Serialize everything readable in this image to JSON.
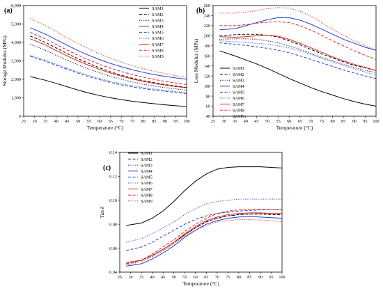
{
  "chart_data": [
    {
      "type": "line",
      "panel": "(a)",
      "xlabel": "Temperature (°C)",
      "ylabel": "Storage Modulus (MPa)",
      "xlim": [
        25,
        100
      ],
      "ylim": [
        0,
        6000
      ],
      "xticks": [
        25,
        30,
        35,
        40,
        45,
        50,
        55,
        60,
        65,
        70,
        75,
        80,
        85,
        90,
        95,
        100
      ],
      "xtick_labels": [
        "25",
        "30",
        "35",
        "40",
        "45",
        "50",
        "55",
        "60",
        "65",
        "70",
        "75",
        "80",
        "85",
        "90",
        "95",
        "100"
      ],
      "yticks": [
        0,
        1000,
        2000,
        3000,
        4000,
        5000,
        6000
      ],
      "ytick_labels": [
        "0",
        "1,000",
        "2,000",
        "3,000",
        "4,000",
        "5,000",
        "6,000"
      ],
      "legend_position": "top-right",
      "x": [
        28,
        35,
        40,
        45,
        50,
        55,
        60,
        65,
        70,
        75,
        80,
        85,
        90,
        95,
        100
      ],
      "series": [
        {
          "name": "SAM1",
          "values": [
            2150,
            1950,
            1780,
            1600,
            1420,
            1260,
            1120,
            1000,
            900,
            810,
            740,
            680,
            620,
            570,
            520
          ]
        },
        {
          "name": "SAM2",
          "values": [
            4350,
            4000,
            3700,
            3400,
            3120,
            2860,
            2620,
            2400,
            2220,
            2060,
            1930,
            1820,
            1720,
            1640,
            1560
          ]
        },
        {
          "name": "SAM3",
          "values": [
            3900,
            3580,
            3300,
            3040,
            2790,
            2560,
            2350,
            2160,
            2000,
            1860,
            1740,
            1640,
            1550,
            1480,
            1410
          ]
        },
        {
          "name": "SAM4",
          "values": [
            4800,
            4450,
            4150,
            3850,
            3560,
            3300,
            3070,
            2860,
            2680,
            2520,
            2380,
            2260,
            2160,
            2080,
            2000
          ]
        },
        {
          "name": "SAM5",
          "values": [
            3250,
            2980,
            2760,
            2550,
            2340,
            2150,
            1980,
            1830,
            1700,
            1590,
            1500,
            1420,
            1350,
            1290,
            1230
          ]
        },
        {
          "name": "SAM6",
          "values": [
            3300,
            3040,
            2820,
            2600,
            2400,
            2210,
            2040,
            1890,
            1760,
            1650,
            1550,
            1470,
            1400,
            1340,
            1280
          ]
        },
        {
          "name": "SAM7",
          "values": [
            4200,
            3860,
            3560,
            3270,
            3000,
            2760,
            2540,
            2340,
            2170,
            2020,
            1890,
            1780,
            1690,
            1610,
            1540
          ]
        },
        {
          "name": "SAM8",
          "values": [
            4550,
            4200,
            3890,
            3590,
            3310,
            3050,
            2810,
            2600,
            2420,
            2260,
            2120,
            2000,
            1890,
            1800,
            1720
          ]
        },
        {
          "name": "SAM9",
          "values": [
            5300,
            4920,
            4580,
            4250,
            3940,
            3650,
            3380,
            3140,
            2930,
            2740,
            2580,
            2440,
            2310,
            2200,
            2100
          ]
        }
      ]
    },
    {
      "type": "line",
      "panel": "(b)",
      "xlabel": "Temperature (°C)",
      "ylabel": "Loss Modulus (MPa)",
      "xlim": [
        25,
        100
      ],
      "ylim": [
        40,
        260
      ],
      "xticks": [
        25,
        30,
        35,
        40,
        45,
        50,
        55,
        60,
        65,
        70,
        75,
        80,
        85,
        90,
        95,
        100
      ],
      "xtick_labels": [
        "25",
        "30",
        "35",
        "40",
        "45",
        "50",
        "55",
        "60",
        "65",
        "70",
        "75",
        "80",
        "85",
        "90",
        "95",
        "100"
      ],
      "yticks": [
        40,
        60,
        80,
        100,
        120,
        140,
        160,
        180,
        200,
        220,
        240,
        260
      ],
      "ytick_labels": [
        "40",
        "60",
        "80",
        "100",
        "120",
        "140",
        "160",
        "180",
        "200",
        "220",
        "240",
        "260"
      ],
      "legend_position": "bottom-left",
      "x": [
        28,
        35,
        40,
        45,
        50,
        55,
        60,
        65,
        70,
        75,
        80,
        85,
        90,
        95,
        100
      ],
      "series": [
        {
          "name": "SAM1",
          "values": [
            170,
            160,
            152,
            144,
            135,
            125,
            115,
            106,
            97,
            89,
            82,
            75,
            69,
            64,
            60
          ]
        },
        {
          "name": "SAM2",
          "values": [
            200,
            202,
            203,
            203,
            201,
            197,
            190,
            182,
            173,
            164,
            156,
            148,
            141,
            136,
            131
          ]
        },
        {
          "name": "SAM3",
          "values": [
            193,
            194,
            194,
            193,
            190,
            186,
            180,
            173,
            165,
            157,
            150,
            143,
            137,
            131,
            127
          ]
        },
        {
          "name": "SAM4",
          "values": [
            212,
            214,
            220,
            226,
            232,
            236,
            236,
            231,
            223,
            213,
            203,
            193,
            185,
            177,
            171
          ]
        },
        {
          "name": "SAM5",
          "values": [
            186,
            183,
            181,
            178,
            175,
            171,
            166,
            160,
            153,
            146,
            139,
            132,
            126,
            120,
            115
          ]
        },
        {
          "name": "SAM6",
          "values": [
            190,
            188,
            187,
            185,
            183,
            180,
            176,
            170,
            163,
            155,
            148,
            141,
            134,
            128,
            122
          ]
        },
        {
          "name": "SAM7",
          "values": [
            198,
            197,
            198,
            200,
            201,
            199,
            193,
            185,
            176,
            167,
            158,
            150,
            143,
            137,
            131
          ]
        },
        {
          "name": "SAM8",
          "values": [
            220,
            220,
            222,
            225,
            227,
            228,
            226,
            220,
            211,
            201,
            190,
            180,
            170,
            161,
            153
          ]
        },
        {
          "name": "SAM9",
          "values": [
            245,
            245,
            247,
            250,
            254,
            256,
            255,
            249,
            239,
            226,
            213,
            201,
            190,
            180,
            172
          ]
        }
      ]
    },
    {
      "type": "line",
      "panel": "(c)",
      "xlabel": "Temperature (°C)",
      "ylabel": "Tan δ",
      "xlim": [
        25,
        100
      ],
      "ylim": [
        0.04,
        0.14
      ],
      "xticks": [
        25,
        30,
        35,
        40,
        45,
        50,
        55,
        60,
        65,
        70,
        75,
        80,
        85,
        90,
        95,
        100
      ],
      "xtick_labels": [
        "25",
        "30",
        "35",
        "40",
        "45",
        "50",
        "55",
        "60",
        "65",
        "70",
        "75",
        "80",
        "85",
        "90",
        "95",
        "100"
      ],
      "yticks": [
        0.04,
        0.06,
        0.08,
        0.1,
        0.12,
        0.14
      ],
      "ytick_labels": [
        "0.04",
        "0.06",
        "0.08",
        "0.10",
        "0.12",
        "0.14"
      ],
      "legend_position": "top-left",
      "x": [
        28,
        35,
        40,
        45,
        50,
        55,
        60,
        65,
        70,
        75,
        80,
        85,
        90,
        95,
        100
      ],
      "series": [
        {
          "name": "SAM1",
          "values": [
            0.079,
            0.081,
            0.085,
            0.091,
            0.099,
            0.108,
            0.116,
            0.122,
            0.126,
            0.1275,
            0.128,
            0.128,
            0.128,
            0.1275,
            0.127
          ]
        },
        {
          "name": "SAM2",
          "values": [
            0.047,
            0.05,
            0.054,
            0.059,
            0.065,
            0.071,
            0.077,
            0.082,
            0.085,
            0.087,
            0.088,
            0.0885,
            0.0885,
            0.088,
            0.088
          ]
        },
        {
          "name": "SAM3",
          "values": [
            0.046,
            0.049,
            0.053,
            0.058,
            0.064,
            0.071,
            0.077,
            0.082,
            0.085,
            0.087,
            0.088,
            0.0885,
            0.089,
            0.089,
            0.089
          ]
        },
        {
          "name": "SAM4",
          "values": [
            0.045,
            0.047,
            0.051,
            0.056,
            0.062,
            0.069,
            0.075,
            0.08,
            0.083,
            0.085,
            0.086,
            0.0865,
            0.086,
            0.0855,
            0.085
          ]
        },
        {
          "name": "SAM5",
          "values": [
            0.058,
            0.061,
            0.065,
            0.07,
            0.075,
            0.08,
            0.084,
            0.087,
            0.089,
            0.09,
            0.091,
            0.0915,
            0.092,
            0.092,
            0.092
          ]
        },
        {
          "name": "SAM6",
          "values": [
            0.065,
            0.068,
            0.072,
            0.077,
            0.082,
            0.088,
            0.093,
            0.097,
            0.099,
            0.1,
            0.101,
            0.101,
            0.101,
            0.101,
            0.101
          ]
        },
        {
          "name": "SAM7",
          "values": [
            0.048,
            0.05,
            0.054,
            0.059,
            0.065,
            0.072,
            0.078,
            0.083,
            0.086,
            0.088,
            0.089,
            0.0895,
            0.0895,
            0.089,
            0.089
          ]
        },
        {
          "name": "SAM8",
          "values": [
            0.047,
            0.05,
            0.055,
            0.061,
            0.067,
            0.074,
            0.08,
            0.085,
            0.089,
            0.091,
            0.092,
            0.0925,
            0.0925,
            0.092,
            0.092
          ]
        },
        {
          "name": "SAM9",
          "values": [
            0.046,
            0.049,
            0.053,
            0.058,
            0.064,
            0.07,
            0.075,
            0.079,
            0.082,
            0.083,
            0.084,
            0.084,
            0.0835,
            0.083,
            0.082
          ]
        }
      ]
    }
  ],
  "series_style": [
    {
      "name": "SAM1",
      "color": "#000000",
      "dash": "solid"
    },
    {
      "name": "SAM2",
      "color": "#000000",
      "dash": "dashed"
    },
    {
      "name": "SAM3",
      "color": "#000000",
      "dash": "dotted"
    },
    {
      "name": "SAM4",
      "color": "#1f3fd6",
      "dash": "solid"
    },
    {
      "name": "SAM5",
      "color": "#1f3fd6",
      "dash": "dashed"
    },
    {
      "name": "SAM6",
      "color": "#1f3fd6",
      "dash": "dotted"
    },
    {
      "name": "SAM7",
      "color": "#e0201b",
      "dash": "solid"
    },
    {
      "name": "SAM8",
      "color": "#e0201b",
      "dash": "dashed"
    },
    {
      "name": "SAM9",
      "color": "#e0201b",
      "dash": "dotted"
    }
  ]
}
